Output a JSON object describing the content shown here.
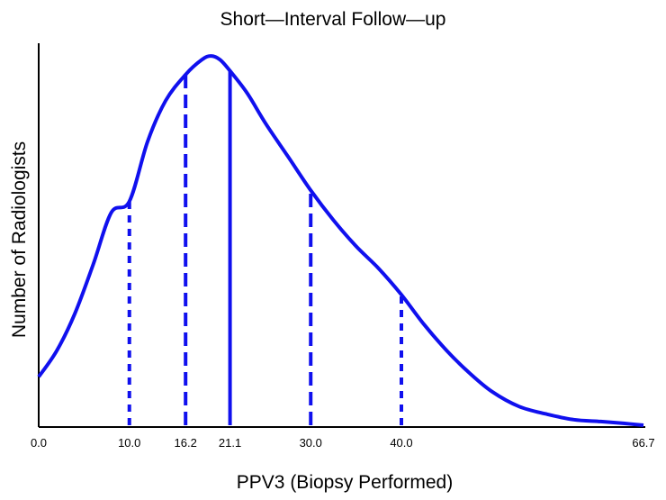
{
  "chart_data": {
    "type": "line",
    "title": "Short—Interval Follow—up",
    "xlabel": "PPV3 (Biopsy Performed)",
    "ylabel": "Number of Radiologists",
    "xlim": [
      0.0,
      66.7
    ],
    "ylim": [
      0,
      1
    ],
    "x_ticks": [
      "0.0",
      "10.0",
      "16.2",
      "21.1",
      "30.0",
      "40.0",
      "66.7"
    ],
    "y_ticks": [],
    "grid": false,
    "legend": "none",
    "series": [
      {
        "x": [
          0.0,
          2.0,
          4.0,
          6.0,
          8.0,
          10.0,
          12.0,
          14.0,
          16.2,
          18.0,
          19.0,
          20.0,
          21.1,
          23.0,
          25.0,
          27.5,
          30.0,
          32.5,
          35.0,
          37.5,
          40.0,
          42.5,
          45.0,
          47.5,
          50.0,
          53.0,
          56.0,
          59.0,
          62.0,
          64.5,
          66.7
        ],
        "y": [
          0.13,
          0.2,
          0.3,
          0.43,
          0.57,
          0.6,
          0.76,
          0.87,
          0.94,
          0.98,
          0.99,
          0.98,
          0.95,
          0.89,
          0.81,
          0.72,
          0.63,
          0.55,
          0.48,
          0.42,
          0.35,
          0.27,
          0.2,
          0.14,
          0.09,
          0.05,
          0.03,
          0.015,
          0.01,
          0.005,
          0.0
        ]
      }
    ],
    "reference_lines": [
      {
        "x": 10.0,
        "style": "dotted"
      },
      {
        "x": 16.2,
        "style": "dashed"
      },
      {
        "x": 21.1,
        "style": "solid"
      },
      {
        "x": 30.0,
        "style": "dashed"
      },
      {
        "x": 40.0,
        "style": "dotted"
      }
    ],
    "colors": {
      "curve": "#1010EE",
      "axis": "#000000"
    }
  }
}
